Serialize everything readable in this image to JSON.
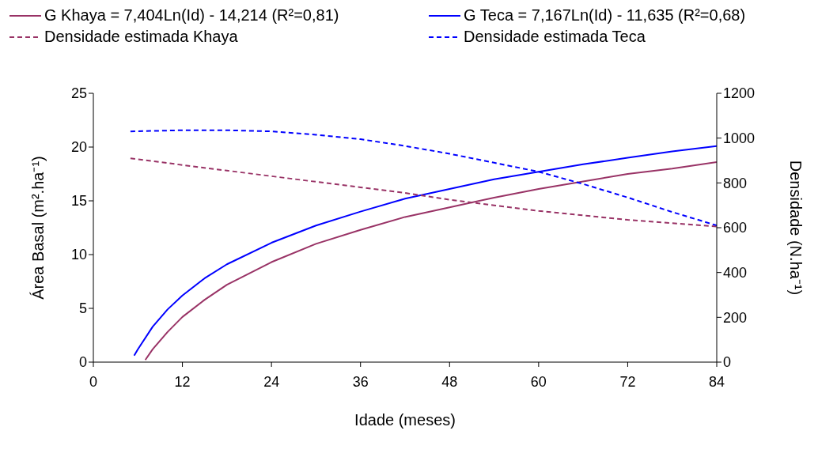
{
  "chart_data": {
    "type": "line",
    "xlabel": "Idade (meses)",
    "ylabel": "Área Basal (m².ha⁻¹)",
    "y2label": "Densidade (N.ha⁻¹)",
    "xlim": [
      0,
      84
    ],
    "xticks": [
      0,
      12,
      24,
      36,
      48,
      60,
      72,
      84
    ],
    "ylim": [
      0,
      25
    ],
    "yticks": [
      0,
      5,
      10,
      15,
      20,
      25
    ],
    "y2lim": [
      0,
      1200
    ],
    "y2ticks": [
      0,
      200,
      400,
      600,
      800,
      1000,
      1200
    ],
    "legend": "top",
    "marker": "none",
    "line_style": "solid",
    "series": [
      {
        "name": "G Khaya = 7,404Ln(Id) - 14,214 (R²=0,81)",
        "color": "#993366",
        "x": [
          7,
          8,
          10,
          12,
          15,
          18,
          24,
          30,
          36,
          42,
          48,
          54,
          60,
          66,
          72,
          78,
          84
        ],
        "values": [
          0.2,
          1.2,
          2.8,
          4.2,
          5.8,
          7.2,
          9.3,
          11.0,
          12.3,
          13.5,
          14.4,
          15.3,
          16.1,
          16.8,
          17.5,
          18.0,
          18.6
        ]
      },
      {
        "name": "G Teca = 7,167Ln(Id) - 11,635 (R²=0,68)",
        "color": "#0000ff",
        "x": [
          5.5,
          6,
          8,
          10,
          12,
          15,
          18,
          24,
          30,
          36,
          42,
          48,
          54,
          60,
          66,
          72,
          78,
          84
        ],
        "values": [
          0.6,
          1.2,
          3.3,
          4.9,
          6.2,
          7.8,
          9.1,
          11.1,
          12.7,
          14.0,
          15.2,
          16.1,
          17.0,
          17.7,
          18.4,
          19.0,
          19.6,
          20.1
        ]
      },
      {
        "name": "Densidade estimada Khaya",
        "color": "#993366",
        "axis": "y2",
        "line_style": "dashed",
        "x": [
          5,
          12,
          18,
          24,
          30,
          36,
          42,
          48,
          54,
          60,
          66,
          72,
          78,
          84
        ],
        "values": [
          910,
          880,
          855,
          830,
          805,
          780,
          755,
          725,
          700,
          675,
          655,
          635,
          620,
          605
        ]
      },
      {
        "name": "Densidade estimada Teca",
        "color": "#0000ff",
        "axis": "y2",
        "line_style": "dashed",
        "x": [
          5,
          12,
          18,
          24,
          30,
          36,
          42,
          48,
          54,
          60,
          66,
          72,
          78,
          84
        ],
        "values": [
          1030,
          1035,
          1035,
          1030,
          1015,
          995,
          965,
          930,
          890,
          850,
          795,
          735,
          670,
          610
        ]
      }
    ]
  }
}
